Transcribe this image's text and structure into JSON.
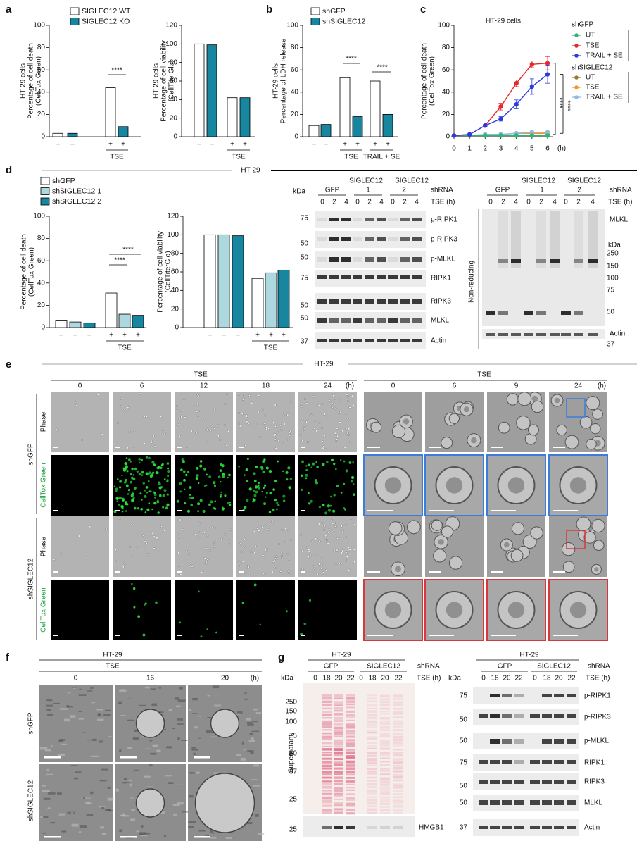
{
  "chart_data": [
    {
      "type": "bar",
      "ylabel": [
        "HT-29 cells",
        "Percentage of cell death",
        "(CellTox Green)"
      ],
      "legend": [
        {
          "name": "SIGLEC12 WT",
          "color": "#ffffff"
        },
        {
          "name": "SIGLEC12 KO",
          "color": "#17869e"
        }
      ],
      "categories": [
        "–",
        "–",
        "+",
        "+"
      ],
      "values": [
        3,
        3,
        44,
        9
      ],
      "colors": [
        "#ffffff",
        "#17869e",
        "#ffffff",
        "#17869e"
      ],
      "group_labels": [
        "TSE"
      ],
      "annotations": [
        "****"
      ],
      "ylim": [
        0,
        100
      ],
      "yticks": [
        0,
        20,
        40,
        60,
        80,
        100
      ]
    },
    {
      "type": "bar",
      "ylabel": [
        "HT-29 cells",
        "Percentage of cell viability",
        "(CellTiterGlo)"
      ],
      "categories": [
        "–",
        "–",
        "+",
        "+"
      ],
      "values": [
        100,
        99,
        42,
        42
      ],
      "colors": [
        "#ffffff",
        "#17869e",
        "#ffffff",
        "#17869e"
      ],
      "group_labels": [
        "TSE"
      ],
      "ylim": [
        0,
        120
      ],
      "yticks": [
        0,
        20,
        40,
        60,
        80,
        100,
        120
      ]
    },
    {
      "type": "bar",
      "ylabel": [
        "HT-29 cells",
        "Percentage of LDH release"
      ],
      "legend": [
        {
          "name": "shGFP",
          "color": "#ffffff"
        },
        {
          "name": "shSIGLEC12",
          "color": "#17869e"
        }
      ],
      "categories": [
        "–",
        "–",
        "+",
        "+",
        "+",
        "+"
      ],
      "values": [
        10,
        11,
        53,
        18,
        50,
        20
      ],
      "colors": [
        "#ffffff",
        "#17869e",
        "#ffffff",
        "#17869e",
        "#ffffff",
        "#17869e"
      ],
      "group_labels": [
        "TSE",
        "TRAIL + SE"
      ],
      "annotations": [
        "****",
        "****"
      ],
      "ylim": [
        0,
        100
      ],
      "yticks": [
        0,
        20,
        40,
        60,
        80,
        100
      ]
    },
    {
      "type": "line",
      "title": "HT-29 cells",
      "ylabel": [
        "Percentage of cell death",
        "(CellTox Green)"
      ],
      "x": [
        0,
        1,
        2,
        3,
        4,
        5,
        6
      ],
      "xlabel": "(h)",
      "legend_groups": [
        "shGFP",
        "shSIGLEC12"
      ],
      "series": [
        {
          "name": "UT",
          "color": "#2bb673",
          "values": [
            1,
            1,
            1,
            1,
            1,
            1,
            1
          ]
        },
        {
          "name": "TSE",
          "color": "#e8262b",
          "values": [
            1,
            2,
            10,
            27,
            48,
            65,
            66
          ],
          "errors": [
            0.5,
            0.5,
            1,
            3,
            3,
            3,
            6
          ]
        },
        {
          "name": "TRAIL + SE",
          "color": "#2b3be0",
          "values": [
            1,
            2,
            10,
            16,
            29,
            45,
            56
          ],
          "errors": [
            0.5,
            0.5,
            1,
            2,
            4,
            7,
            8
          ]
        },
        {
          "name": "UT",
          "color": "#9b7a2f",
          "values": [
            1,
            1,
            1,
            1,
            1,
            1,
            1
          ]
        },
        {
          "name": "TSE",
          "color": "#f7941d",
          "values": [
            1,
            1,
            2,
            2,
            3,
            3,
            3
          ]
        },
        {
          "name": "TRAIL + SE",
          "color": "#8fb8e8",
          "values": [
            1,
            1,
            2,
            2,
            3,
            4,
            4
          ]
        }
      ],
      "annotations": [
        "****",
        "****"
      ],
      "xlim": [
        0,
        6
      ],
      "xticks": [
        0,
        1,
        2,
        3,
        4,
        5,
        6
      ],
      "ylim": [
        0,
        100
      ],
      "yticks": [
        0,
        20,
        40,
        60,
        80,
        100
      ]
    },
    {
      "type": "bar",
      "ylabel": [
        "Percentage of cell death",
        "(CellTox Green)"
      ],
      "legend": [
        {
          "name": "shGFP",
          "color": "#ffffff"
        },
        {
          "name": "shSIGLEC12 1",
          "color": "#aed8e0"
        },
        {
          "name": "shSIGLEC12 2",
          "color": "#17869e"
        }
      ],
      "categories": [
        "–",
        "–",
        "–",
        "+",
        "+",
        "+"
      ],
      "values": [
        6,
        5,
        4,
        31,
        12,
        11
      ],
      "colors": [
        "#ffffff",
        "#aed8e0",
        "#17869e",
        "#ffffff",
        "#aed8e0",
        "#17869e"
      ],
      "group_labels": [
        "TSE"
      ],
      "annotations": [
        "****",
        "****"
      ],
      "ylim": [
        0,
        100
      ],
      "yticks": [
        0,
        20,
        40,
        60,
        80,
        100
      ]
    },
    {
      "type": "bar",
      "ylabel": [
        "Percentage of cell viability",
        "(CellTiterGlo)"
      ],
      "categories": [
        "–",
        "–",
        "–",
        "+",
        "+",
        "+"
      ],
      "values": [
        100,
        100,
        99,
        53,
        59,
        62
      ],
      "colors": [
        "#ffffff",
        "#aed8e0",
        "#17869e",
        "#ffffff",
        "#aed8e0",
        "#17869e"
      ],
      "group_labels": [
        "TSE"
      ],
      "ylim": [
        0,
        120
      ],
      "yticks": [
        0,
        20,
        40,
        60,
        80,
        100,
        120
      ]
    }
  ],
  "figure": {
    "panel_labels": [
      "a",
      "b",
      "c",
      "d",
      "e",
      "f",
      "g"
    ],
    "d_title": "HT-29",
    "blots": [
      {
        "genes": [
          "SIGLEC12",
          "SIGLEC12"
        ],
        "groups": [
          "GFP",
          "1",
          "2"
        ],
        "groups_label": "shRNA",
        "lanes": [
          0,
          2,
          4,
          0,
          2,
          4,
          0,
          2,
          4
        ],
        "lanes_label": "TSE (h)",
        "kda": "kDa",
        "markers": [
          75,
          50,
          50,
          75,
          50,
          50,
          37
        ],
        "bands": [
          "p-RIPK1",
          "p-RIPK3",
          "p-MLKL",
          "RIPK1",
          "RIPK3",
          "MLKL",
          "Actin"
        ]
      },
      {
        "genes": [
          "SIGLEC12",
          "SIGLEC12"
        ],
        "groups": [
          "GFP",
          "1",
          "2"
        ],
        "groups_label": "shRNA",
        "lanes": [
          0,
          2,
          4,
          0,
          2,
          4,
          0,
          2,
          4
        ],
        "lanes_label": "TSE (h)",
        "kda": "kDa",
        "markers": [
          250,
          150,
          100,
          75,
          50,
          37
        ],
        "bands": [
          "MLKL",
          "Actin"
        ],
        "side_label": "Non-reducing"
      },
      {
        "title": "HT-29",
        "groups": [
          "GFP",
          "SIGLEC12"
        ],
        "groups_label": "shRNA",
        "lanes": [
          0,
          18,
          20,
          22,
          0,
          18,
          20,
          22
        ],
        "lanes_label": "TSE (h)",
        "kda": "kDa",
        "markers": [
          250,
          150,
          100,
          75,
          50,
          37,
          25,
          25
        ],
        "bands": [
          "HMGB1"
        ],
        "side_label": "Supernatant"
      },
      {
        "title": "HT-29",
        "groups": [
          "GFP",
          "SIGLEC12"
        ],
        "groups_label": "shRNA",
        "lanes": [
          0,
          18,
          20,
          22,
          0,
          18,
          20,
          22
        ],
        "lanes_label": "TSE (h)",
        "kda": "kDa",
        "markers": [
          75,
          50,
          50,
          75,
          50,
          50,
          37
        ],
        "bands": [
          "p-RIPK1",
          "p-RIPK3",
          "p-MLKL",
          "RIPK1",
          "RIPK3",
          "MLKL",
          "Actin"
        ]
      }
    ],
    "e": {
      "title": "HT-29",
      "left": {
        "condition": "TSE",
        "times": [
          0,
          6,
          12,
          18,
          24
        ],
        "unit": "(h)"
      },
      "right": {
        "condition": "TSE",
        "times": [
          0,
          6,
          9,
          24
        ],
        "unit": "(h)"
      },
      "row_labels": [
        "Phase",
        "CellTox Green",
        "Phase",
        "CellTox Green"
      ],
      "groups": [
        "shGFP",
        "shSIGLEC12"
      ]
    },
    "f": {
      "title": "HT-29",
      "condition": "TSE",
      "times": [
        0,
        16,
        20
      ],
      "unit": "(h)",
      "groups": [
        "shGFP",
        "shSIGLEC12"
      ]
    }
  }
}
